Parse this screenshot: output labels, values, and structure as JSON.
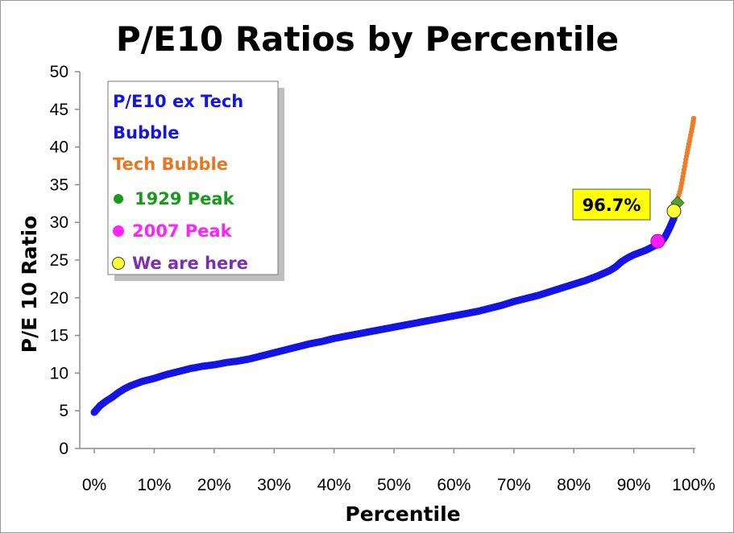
{
  "chart_data": {
    "type": "scatter",
    "title": "P/E10 Ratios by Percentile",
    "xlabel": "Percentile",
    "ylabel": "P/E 10 Ratio",
    "xlim": [
      0,
      100
    ],
    "ylim": [
      0,
      50
    ],
    "x_ticks": [
      0,
      10,
      20,
      30,
      40,
      50,
      60,
      70,
      80,
      90,
      100
    ],
    "x_tick_labels": [
      "0%",
      "10%",
      "20%",
      "30%",
      "40%",
      "50%",
      "60%",
      "70%",
      "80%",
      "90%",
      "100%"
    ],
    "y_ticks": [
      0,
      5,
      10,
      15,
      20,
      25,
      30,
      35,
      40,
      45,
      50
    ],
    "y_tick_labels": [
      "0",
      "5",
      "10",
      "15",
      "20",
      "25",
      "30",
      "35",
      "40",
      "45",
      "50"
    ],
    "grid": false,
    "legend_position": "top-left",
    "series": [
      {
        "name": "P/E10 ex Tech Bubble",
        "color": "#1414e6",
        "points": [
          [
            0,
            4.8
          ],
          [
            1,
            5.7
          ],
          [
            2,
            6.3
          ],
          [
            3,
            6.8
          ],
          [
            4,
            7.4
          ],
          [
            5,
            7.9
          ],
          [
            6,
            8.3
          ],
          [
            7,
            8.6
          ],
          [
            8,
            8.9
          ],
          [
            9,
            9.1
          ],
          [
            10,
            9.3
          ],
          [
            12,
            9.8
          ],
          [
            14,
            10.2
          ],
          [
            16,
            10.6
          ],
          [
            18,
            10.9
          ],
          [
            20,
            11.1
          ],
          [
            22,
            11.4
          ],
          [
            24,
            11.6
          ],
          [
            26,
            11.9
          ],
          [
            28,
            12.3
          ],
          [
            30,
            12.7
          ],
          [
            32,
            13.1
          ],
          [
            34,
            13.5
          ],
          [
            36,
            13.9
          ],
          [
            38,
            14.2
          ],
          [
            40,
            14.6
          ],
          [
            42,
            14.9
          ],
          [
            44,
            15.2
          ],
          [
            46,
            15.5
          ],
          [
            48,
            15.8
          ],
          [
            50,
            16.1
          ],
          [
            52,
            16.4
          ],
          [
            54,
            16.7
          ],
          [
            56,
            17.0
          ],
          [
            58,
            17.3
          ],
          [
            60,
            17.6
          ],
          [
            62,
            17.9
          ],
          [
            64,
            18.2
          ],
          [
            66,
            18.6
          ],
          [
            68,
            19.0
          ],
          [
            70,
            19.5
          ],
          [
            72,
            19.9
          ],
          [
            74,
            20.3
          ],
          [
            76,
            20.8
          ],
          [
            78,
            21.3
          ],
          [
            80,
            21.8
          ],
          [
            82,
            22.3
          ],
          [
            84,
            22.9
          ],
          [
            86,
            23.6
          ],
          [
            87,
            24.1
          ],
          [
            88,
            24.8
          ],
          [
            89,
            25.3
          ],
          [
            90,
            25.7
          ],
          [
            91,
            26.0
          ],
          [
            92,
            26.3
          ],
          [
            93,
            26.7
          ],
          [
            94,
            27.1
          ],
          [
            94.5,
            27.4
          ],
          [
            95,
            27.8
          ],
          [
            95.5,
            28.5
          ],
          [
            96,
            29.3
          ],
          [
            96.5,
            30.2
          ],
          [
            96.7,
            30.6
          ]
        ]
      },
      {
        "name": "Tech Bubble",
        "color": "#ee7d2a",
        "points": [
          [
            96.9,
            31.8
          ],
          [
            97.2,
            32.8
          ],
          [
            97.5,
            33.6
          ],
          [
            97.8,
            34.4
          ],
          [
            98.0,
            35.2
          ],
          [
            98.2,
            36.1
          ],
          [
            98.4,
            37.0
          ],
          [
            98.6,
            37.9
          ],
          [
            98.8,
            38.8
          ],
          [
            99.0,
            39.6
          ],
          [
            99.2,
            40.4
          ],
          [
            99.4,
            41.2
          ],
          [
            99.6,
            42.0
          ],
          [
            99.8,
            42.8
          ],
          [
            100,
            43.8
          ]
        ]
      }
    ],
    "highlights": [
      {
        "name": "1929 Peak",
        "x": 97.3,
        "y": 32.6,
        "color": "#5aa02c"
      },
      {
        "name": "2007 Peak",
        "x": 94.0,
        "y": 27.5,
        "color": "#ff1aff"
      },
      {
        "name": "We are here",
        "x": 96.7,
        "y": 31.5,
        "color": "#ffff33"
      }
    ],
    "annotation": "96.7%"
  },
  "legend": {
    "items": [
      {
        "label": "P/E10 ex Tech Bubble",
        "color": "#1414e6",
        "marker": "none"
      },
      {
        "label": "Tech Bubble",
        "color": "#e87722",
        "marker": "none"
      },
      {
        "label": "1929 Peak",
        "color": "#1a9a1a",
        "marker": "dot-green"
      },
      {
        "label": "2007 Peak",
        "color": "#ff22ff",
        "marker": "dot-magenta"
      },
      {
        "label": "We are here",
        "color": "#7a30b0",
        "marker": "dot-yellow"
      }
    ]
  },
  "colors": {
    "axis": "#8c8c8c",
    "callout_fill": "#ffff00"
  }
}
